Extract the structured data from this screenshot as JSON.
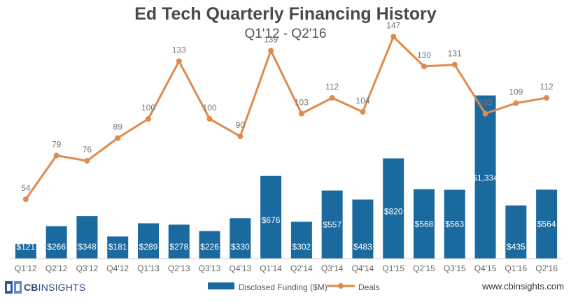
{
  "chart_data": {
    "type": "bar",
    "title": "Ed Tech Quarterly Financing History",
    "subtitle": "Q1'12 - Q2'16",
    "categories": [
      "Q1'12",
      "Q2'12",
      "Q3'12",
      "Q4'12",
      "Q1'13",
      "Q2'13",
      "Q3'13",
      "Q4'13",
      "Q1'14",
      "Q2'14",
      "Q3'14",
      "Q4'14",
      "Q1'15",
      "Q2'15",
      "Q3'15",
      "Q4'15",
      "Q1'16",
      "Q2'16"
    ],
    "series": [
      {
        "name": "Disclosed Funding ($M)",
        "type": "bar",
        "color": "#1a6aa0",
        "values": [
          121,
          266,
          348,
          181,
          289,
          278,
          226,
          330,
          676,
          302,
          557,
          483,
          820,
          568,
          563,
          1334,
          435,
          564
        ],
        "labels": [
          "$121",
          "$266",
          "$348",
          "$181",
          "$289",
          "$278",
          "$226",
          "$330",
          "$676",
          "$302",
          "$557",
          "$483",
          "$820",
          "$568",
          "$563",
          "$1,334",
          "$435",
          "$564"
        ]
      },
      {
        "name": "Deals",
        "type": "line",
        "color": "#e08a4c",
        "values": [
          54,
          79,
          76,
          89,
          100,
          133,
          100,
          90,
          139,
          103,
          112,
          104,
          147,
          130,
          131,
          103,
          109,
          112
        ]
      }
    ],
    "bar_ylim": [
      0,
      2000
    ],
    "line_ylim": [
      20,
      160
    ],
    "grid": false,
    "legend": "bottom"
  },
  "brand": {
    "logo_bold": "CB",
    "logo_rest": "INSIGHTS",
    "website": "www.cbinsights.com"
  }
}
